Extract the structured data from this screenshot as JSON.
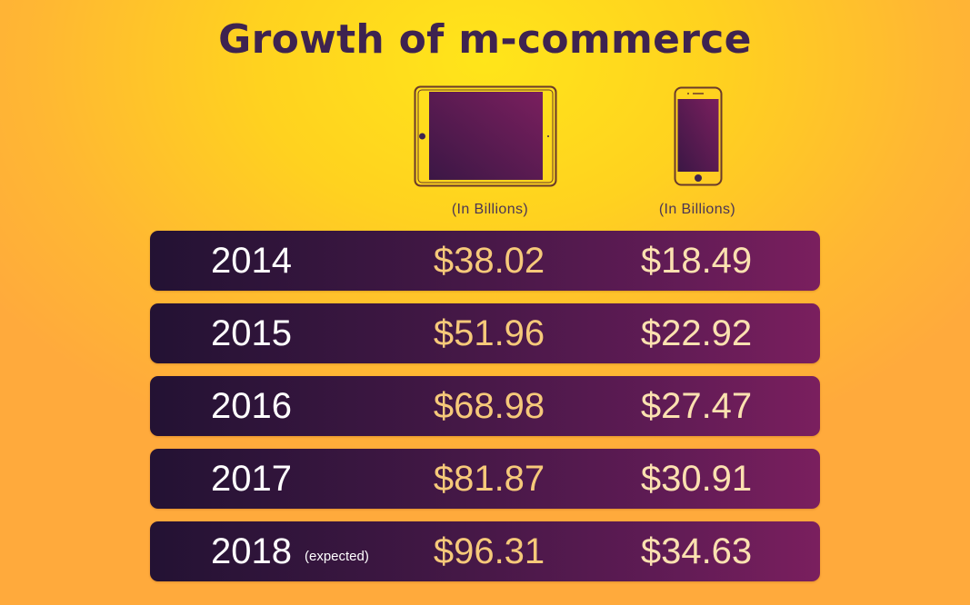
{
  "chart_data": {
    "type": "table",
    "title": "Growth of m-commerce",
    "columns": [
      {
        "device": "tablet-icon",
        "unit": "(In Billions)"
      },
      {
        "device": "smartphone-icon",
        "unit": "(In Billions)"
      }
    ],
    "rows": [
      {
        "year": "2014",
        "note": "",
        "tablet": "$38.02",
        "phone": "$18.49"
      },
      {
        "year": "2015",
        "note": "",
        "tablet": "$51.96",
        "phone": "$22.92"
      },
      {
        "year": "2016",
        "note": "",
        "tablet": "$68.98",
        "phone": "$27.47"
      },
      {
        "year": "2017",
        "note": "",
        "tablet": "$81.87",
        "phone": "$30.91"
      },
      {
        "year": "2018",
        "note": "(expected)",
        "tablet": "$96.31",
        "phone": "$34.63"
      }
    ],
    "colors": {
      "title": "#3e2350",
      "row_start": "#231233",
      "row_end": "#7a1f5e",
      "tablet_value": "#f6c97a",
      "phone_value": "#fbe1b0",
      "screen": "#6a1d58"
    }
  }
}
